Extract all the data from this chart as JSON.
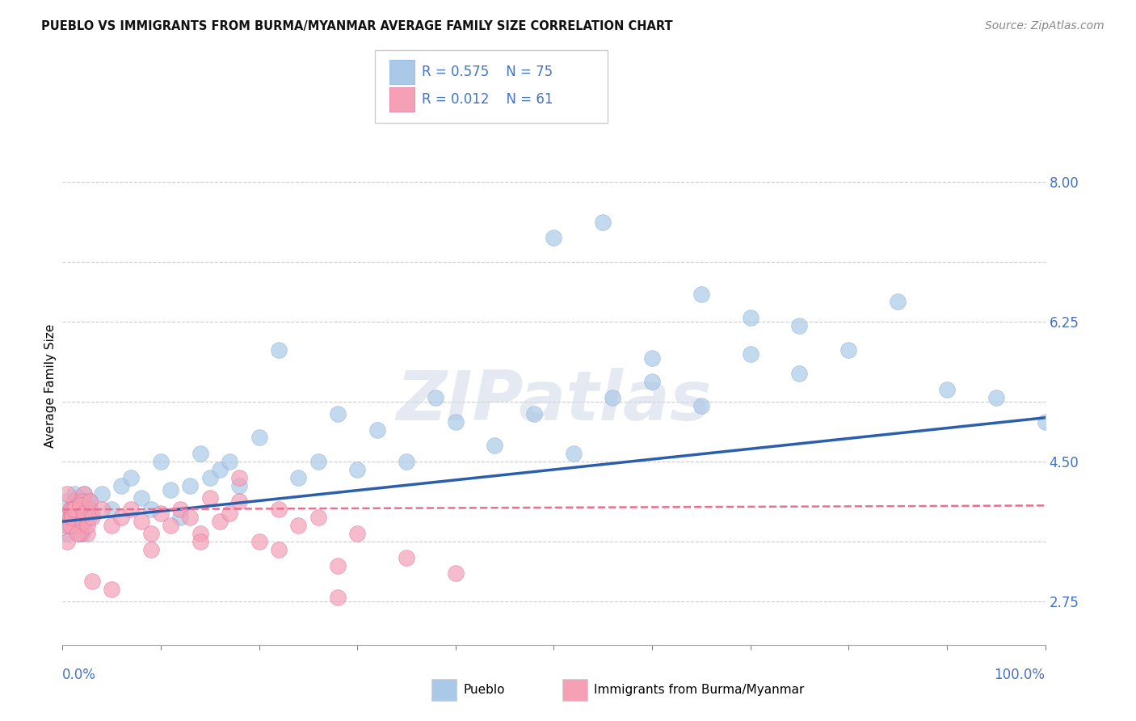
{
  "title": "PUEBLO VS IMMIGRANTS FROM BURMA/MYANMAR AVERAGE FAMILY SIZE CORRELATION CHART",
  "source": "Source: ZipAtlas.com",
  "ylabel": "Average Family Size",
  "ytick_vals": [
    2.75,
    3.5,
    4.5,
    5.25,
    6.25,
    7.0,
    8.0
  ],
  "ytick_labels": [
    "2.75",
    "",
    "4.50",
    "",
    "6.25",
    "",
    "8.00"
  ],
  "xlim": [
    0.0,
    1.0
  ],
  "ylim": [
    2.2,
    8.7
  ],
  "pueblo_color": "#aac9e8",
  "immigrant_color": "#f5a0b5",
  "pueblo_line_color": "#2b5fad",
  "immigrant_line_color": "#e87090",
  "axis_label_color": "#4472c4",
  "watermark": "ZIPatlas",
  "pueblo_scatter_x": [
    0.005,
    0.008,
    0.01,
    0.012,
    0.015,
    0.018,
    0.02,
    0.022,
    0.025,
    0.028,
    0.005,
    0.008,
    0.01,
    0.012,
    0.015,
    0.018,
    0.02,
    0.022,
    0.025,
    0.028,
    0.005,
    0.008,
    0.01,
    0.012,
    0.015,
    0.018,
    0.02,
    0.022,
    0.025,
    0.028,
    0.03,
    0.04,
    0.05,
    0.06,
    0.07,
    0.08,
    0.09,
    0.1,
    0.11,
    0.12,
    0.13,
    0.14,
    0.15,
    0.16,
    0.17,
    0.18,
    0.2,
    0.22,
    0.24,
    0.26,
    0.28,
    0.3,
    0.32,
    0.35,
    0.38,
    0.4,
    0.44,
    0.48,
    0.52,
    0.56,
    0.6,
    0.65,
    0.7,
    0.75,
    0.8,
    0.85,
    0.9,
    0.95,
    1.0,
    0.5,
    0.55,
    0.6,
    0.65,
    0.7,
    0.75
  ],
  "pueblo_scatter_y": [
    3.8,
    3.9,
    3.7,
    4.0,
    3.85,
    3.75,
    3.95,
    4.1,
    3.8,
    3.9,
    3.6,
    3.7,
    3.9,
    4.1,
    3.8,
    3.7,
    3.6,
    3.9,
    4.0,
    3.8,
    4.0,
    3.8,
    3.85,
    3.9,
    4.05,
    3.7,
    3.75,
    3.8,
    3.9,
    4.0,
    3.85,
    4.1,
    3.9,
    4.2,
    4.3,
    4.05,
    3.9,
    4.5,
    4.15,
    3.8,
    4.2,
    4.6,
    4.3,
    4.4,
    4.5,
    4.2,
    4.8,
    5.9,
    4.3,
    4.5,
    5.1,
    4.4,
    4.9,
    4.5,
    5.3,
    5.0,
    4.7,
    5.1,
    4.6,
    5.3,
    5.5,
    5.2,
    5.85,
    5.6,
    5.9,
    6.5,
    5.4,
    5.3,
    5.0,
    7.3,
    7.5,
    5.8,
    6.6,
    6.3,
    6.2
  ],
  "immigrant_scatter_x": [
    0.005,
    0.008,
    0.01,
    0.012,
    0.015,
    0.018,
    0.02,
    0.022,
    0.025,
    0.028,
    0.005,
    0.008,
    0.01,
    0.012,
    0.015,
    0.018,
    0.02,
    0.022,
    0.025,
    0.028,
    0.005,
    0.008,
    0.01,
    0.012,
    0.015,
    0.018,
    0.02,
    0.022,
    0.025,
    0.028,
    0.03,
    0.04,
    0.05,
    0.06,
    0.07,
    0.08,
    0.09,
    0.1,
    0.11,
    0.12,
    0.13,
    0.14,
    0.15,
    0.16,
    0.17,
    0.18,
    0.2,
    0.22,
    0.24,
    0.26,
    0.28,
    0.3,
    0.35,
    0.4,
    0.22,
    0.18,
    0.28,
    0.14,
    0.09,
    0.05,
    0.03
  ],
  "immigrant_scatter_y": [
    3.7,
    3.9,
    3.8,
    4.0,
    3.75,
    3.85,
    3.95,
    4.1,
    3.6,
    3.9,
    3.5,
    3.8,
    3.9,
    3.7,
    3.8,
    3.6,
    4.0,
    3.75,
    3.85,
    3.9,
    4.1,
    3.7,
    3.8,
    3.9,
    3.6,
    3.95,
    3.75,
    3.85,
    3.7,
    4.0,
    3.8,
    3.9,
    3.7,
    3.8,
    3.9,
    3.75,
    3.6,
    3.85,
    3.7,
    3.9,
    3.8,
    3.6,
    4.05,
    3.75,
    3.85,
    4.3,
    3.5,
    3.4,
    3.7,
    3.8,
    3.2,
    3.6,
    3.3,
    3.1,
    3.9,
    4.0,
    2.8,
    3.5,
    3.4,
    2.9,
    3.0
  ],
  "blue_line_x0": 0.0,
  "blue_line_y0": 3.75,
  "blue_line_x1": 1.0,
  "blue_line_y1": 5.05,
  "pink_line_x0": 0.0,
  "pink_line_y0": 3.9,
  "pink_line_x1": 1.0,
  "pink_line_y1": 3.95
}
